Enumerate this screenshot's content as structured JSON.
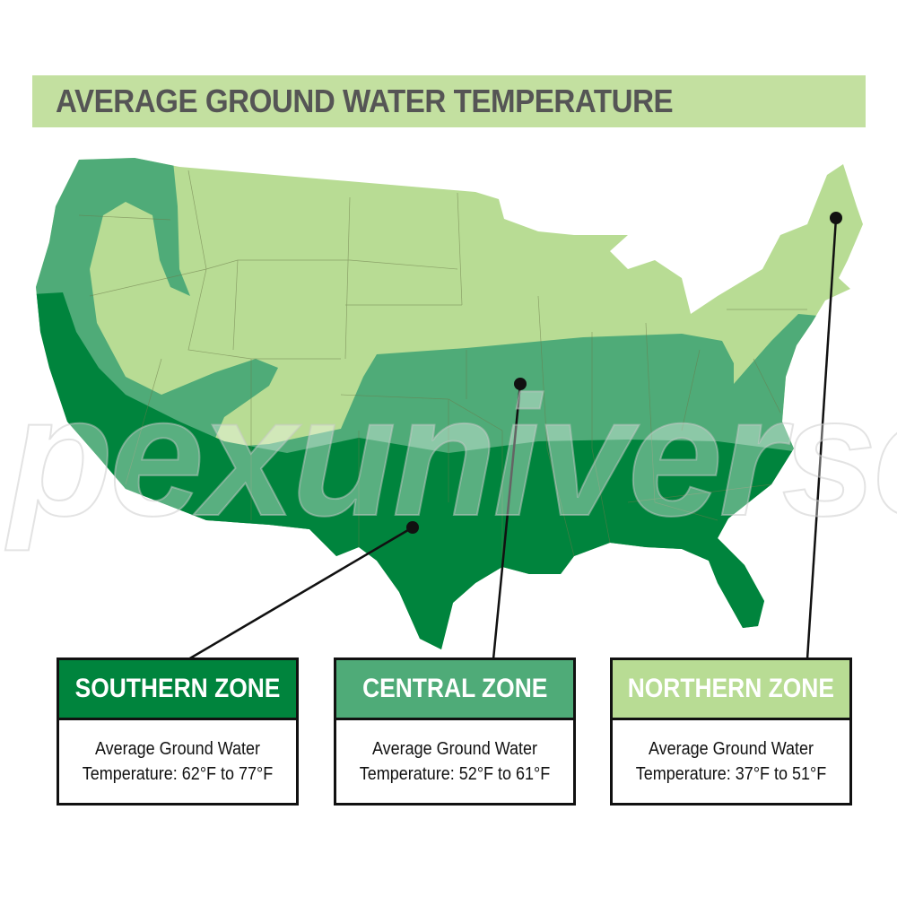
{
  "title": "AVERAGE GROUND WATER TEMPERATURE",
  "watermark": "pexuniverse",
  "colors": {
    "southern": "#00843d",
    "central": "#4fab78",
    "northern": "#b8dc94",
    "title_bar": "#c3e0a0"
  },
  "zones": [
    {
      "name": "SOUTHERN ZONE",
      "line1": "Average Ground Water",
      "line2": "Temperature: 62°F to 77°F"
    },
    {
      "name": "CENTRAL ZONE",
      "line1": "Average Ground Water",
      "line2": "Temperature: 52°F to 61°F"
    },
    {
      "name": "NORTHERN ZONE",
      "line1": "Average Ground Water",
      "line2": "Temperature: 37°F to 51°F"
    }
  ]
}
